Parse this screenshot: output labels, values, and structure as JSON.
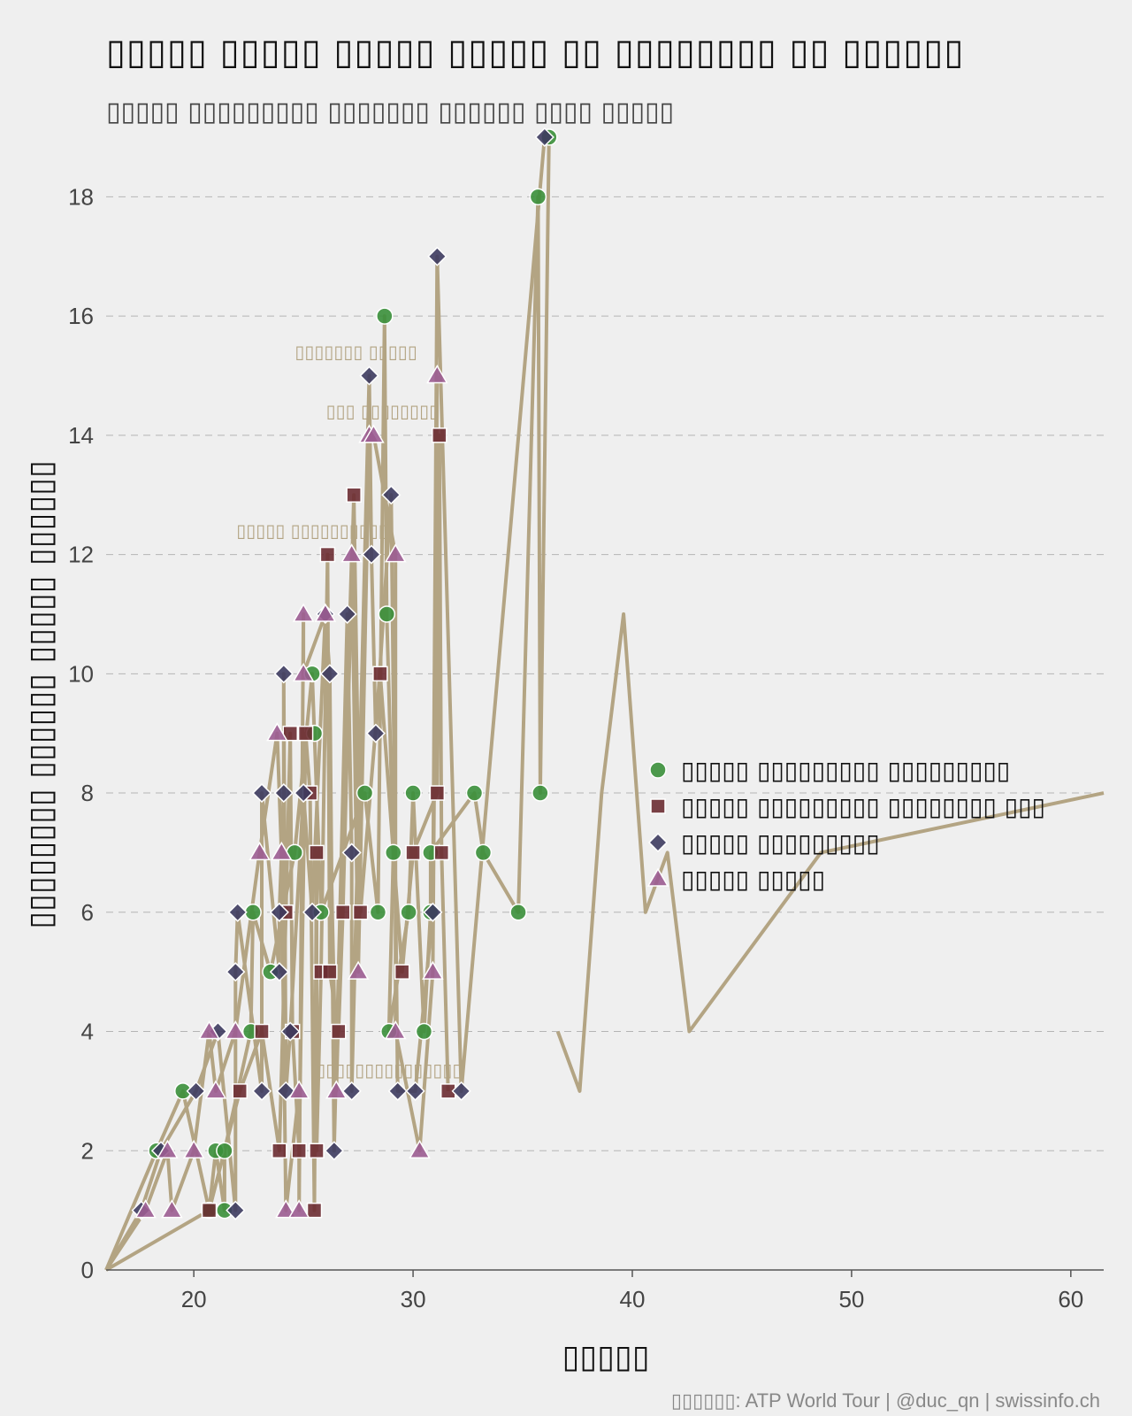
{
  "chart_data": {
    "type": "line",
    "title": "▯▯▯▯▯ ▯▯▯▯▯ ▯▯▯▯▯ ▯▯▯▯▯ ▯▯ ▯▯▯▯▯▯▯▯ ▯▯ ▯▯▯▯▯▯",
    "subtitle": "▯▯▯▯▯ ▯▯▯▯▯▯▯▯▯ ▯▯▯▯▯▯▯ ▯▯▯▯▯▯ ▯▯▯▯ ▯▯▯▯▯",
    "xlabel": "▯▯▯▯▯",
    "ylabel": "▯▯▯▯▯▯▯▯ ▯▯▯▯▯▯ ▯▯▯▯▯ ▯▯▯▯▯▯",
    "source": "▯▯▯▯▯▯: ATP World Tour | @duc_qn | swissinfo.ch",
    "xlim": [
      16,
      61.5
    ],
    "ylim": [
      0,
      19
    ],
    "x_ticks": [
      20,
      30,
      40,
      50,
      60
    ],
    "y_ticks": [
      0,
      2,
      4,
      6,
      8,
      10,
      12,
      14,
      16,
      18
    ],
    "grid": "horizontal dashed",
    "legend_position": "right",
    "line_color": "#b3a483",
    "series": [
      {
        "name": "▯▯▯▯▯ ▯▯▯▯▯▯▯▯▯ ▯▯▯▯▯▯▯▯▯",
        "marker": "circle",
        "color": "#3a8f3a",
        "points": [
          [
            16,
            0
          ],
          [
            18.3,
            2
          ],
          [
            19.5,
            3
          ],
          [
            20.7,
            1
          ],
          [
            21,
            2
          ],
          [
            21.4,
            1
          ],
          [
            21.4,
            2
          ],
          [
            22.6,
            4
          ],
          [
            22.7,
            6
          ],
          [
            23.5,
            5
          ],
          [
            24.6,
            7
          ],
          [
            25.4,
            10
          ],
          [
            25.5,
            9
          ],
          [
            25.8,
            6
          ],
          [
            27.8,
            8
          ],
          [
            28.4,
            6
          ],
          [
            28.7,
            16
          ],
          [
            28.8,
            11
          ],
          [
            29.1,
            7
          ],
          [
            28.9,
            4
          ],
          [
            29.8,
            6
          ],
          [
            30,
            8
          ],
          [
            30.5,
            4
          ],
          [
            30.8,
            6
          ],
          [
            30.8,
            7
          ],
          [
            32.8,
            8
          ],
          [
            33.2,
            7
          ],
          [
            34.8,
            6
          ],
          [
            35.7,
            18
          ],
          [
            35.8,
            8
          ],
          [
            36.2,
            19
          ]
        ]
      },
      {
        "name": "▯▯▯▯▯ ▯▯▯▯▯▯▯▯▯ ▯▯▯▯▯▯▯▯ ▯▯▯",
        "marker": "square",
        "color": "#6b2c32",
        "points": [
          [
            16,
            0
          ],
          [
            20.7,
            1
          ],
          [
            22.1,
            3
          ],
          [
            23.1,
            4
          ],
          [
            23.9,
            2
          ],
          [
            24.2,
            6
          ],
          [
            24.4,
            9
          ],
          [
            24.5,
            4
          ],
          [
            24.8,
            2
          ],
          [
            25.1,
            9
          ],
          [
            25.3,
            8
          ],
          [
            25.5,
            1
          ],
          [
            25.6,
            7
          ],
          [
            25.6,
            2
          ],
          [
            25.8,
            5
          ],
          [
            26.1,
            12
          ],
          [
            26.2,
            5
          ],
          [
            26.6,
            4
          ],
          [
            26.8,
            6
          ],
          [
            27.3,
            13
          ],
          [
            27.6,
            6
          ],
          [
            28.5,
            10
          ],
          [
            29.5,
            5
          ],
          [
            30,
            7
          ],
          [
            31.1,
            8
          ],
          [
            31.2,
            14
          ],
          [
            31.3,
            7
          ],
          [
            31.6,
            3
          ]
        ]
      },
      {
        "name": "▯▯▯▯▯ ▯▯▯▯▯▯▯▯▯",
        "marker": "diamond",
        "color": "#3d3b5f",
        "points": [
          [
            16,
            0
          ],
          [
            17.6,
            1
          ],
          [
            18.5,
            2
          ],
          [
            20.1,
            3
          ],
          [
            21.1,
            4
          ],
          [
            21.9,
            1
          ],
          [
            21.9,
            5
          ],
          [
            22,
            6
          ],
          [
            23.1,
            3
          ],
          [
            23.1,
            8
          ],
          [
            23.9,
            5
          ],
          [
            23.9,
            6
          ],
          [
            24.1,
            8
          ],
          [
            24.1,
            10
          ],
          [
            24.2,
            3
          ],
          [
            24.4,
            4
          ],
          [
            25,
            8
          ],
          [
            25.4,
            6
          ],
          [
            26,
            11
          ],
          [
            26.2,
            10
          ],
          [
            26.4,
            2
          ],
          [
            27,
            11
          ],
          [
            27.2,
            7
          ],
          [
            27.2,
            3
          ],
          [
            28,
            15
          ],
          [
            28.1,
            12
          ],
          [
            28.3,
            9
          ],
          [
            29,
            13
          ],
          [
            29.3,
            3
          ],
          [
            30.1,
            3
          ],
          [
            30.9,
            6
          ],
          [
            31.1,
            17
          ],
          [
            32.2,
            3
          ],
          [
            36,
            19
          ]
        ]
      },
      {
        "name": "▯▯▯▯▯ ▯▯▯▯▯",
        "marker": "triangle",
        "color": "#9b5c91",
        "points": [
          [
            16,
            0
          ],
          [
            17.8,
            1
          ],
          [
            18.8,
            2
          ],
          [
            19,
            1
          ],
          [
            20,
            2
          ],
          [
            20.7,
            4
          ],
          [
            21,
            3
          ],
          [
            21.9,
            4
          ],
          [
            23,
            7
          ],
          [
            23.8,
            9
          ],
          [
            24,
            7
          ],
          [
            24.2,
            1
          ],
          [
            24.8,
            3
          ],
          [
            24.8,
            1
          ],
          [
            25,
            11
          ],
          [
            25,
            10
          ],
          [
            26,
            11
          ],
          [
            26.5,
            3
          ],
          [
            27.2,
            12
          ],
          [
            27.5,
            5
          ],
          [
            28,
            14
          ],
          [
            28.2,
            14
          ],
          [
            29.2,
            12
          ],
          [
            29.2,
            4
          ],
          [
            30.3,
            2
          ],
          [
            30.9,
            5
          ],
          [
            31.1,
            15
          ]
        ]
      }
    ],
    "context_line": [
      [
        36.6,
        4
      ],
      [
        37.6,
        3
      ],
      [
        38.6,
        8
      ],
      [
        39.6,
        11
      ],
      [
        40.6,
        6
      ],
      [
        41.6,
        7
      ],
      [
        42.6,
        4
      ],
      [
        48.6,
        7
      ],
      [
        61.5,
        8
      ]
    ],
    "annotations": [
      {
        "text": "▯▯▯▯▯▯▯ ▯▯▯▯▯",
        "x": 27.4,
        "y": 15.3
      },
      {
        "text": "▯▯▯ ▯▯▯▯▯▯▯▯",
        "x": 28.6,
        "y": 14.3
      },
      {
        "text": "▯▯▯▯▯ ▯▯▯▯▯▯▯▯▯▯",
        "x": 25.4,
        "y": 12.3
      },
      {
        "text": "▯▯▯▯▯▯▯▯▯▯▯▯▯▯▯",
        "x": 28.9,
        "y": 3.25
      }
    ]
  }
}
